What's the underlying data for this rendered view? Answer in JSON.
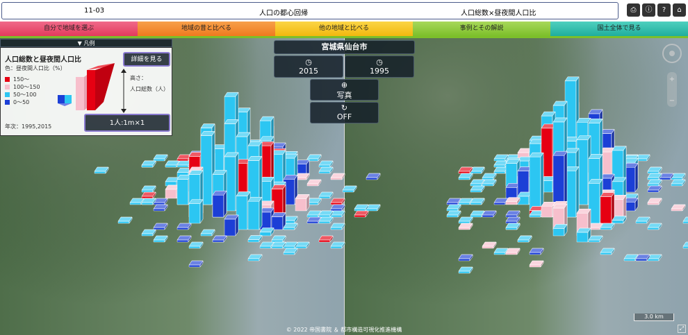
{
  "header": {
    "code": "11-03",
    "title": "人口の都心回帰",
    "subtitle": "人口総数×昼夜間人口比"
  },
  "tabs": [
    "自分で地域を選ぶ",
    "地域の昔と比べる",
    "他の地域と比べる",
    "事例とその解説",
    "国土全体で見る"
  ],
  "legend": {
    "toggle": "凡例",
    "title": "人口総数と昼夜間人口比",
    "detail_button": "詳細を見る",
    "color_label": "色：昼夜間人口比（%）",
    "items": [
      {
        "label": "150～",
        "color": "#e60012"
      },
      {
        "label": "100～150",
        "color": "#f7bfcc"
      },
      {
        "label": "50～100",
        "color": "#2cc6f2"
      },
      {
        "label": "0～50",
        "color": "#1c3fd6"
      }
    ],
    "height_label": "高さ：",
    "height_value": "人口総数（人）",
    "years": "年次：1995,2015",
    "scale": "1人:1m×1"
  },
  "controls": {
    "region": "宮城県仙台市",
    "year_left": "2015",
    "year_right": "1995",
    "photo": "写真",
    "toggle": "OFF"
  },
  "map": {
    "scale": "3.0 km",
    "credit": "© 2022 帝国書院 ＆ 都市構造可視化推進機構"
  }
}
